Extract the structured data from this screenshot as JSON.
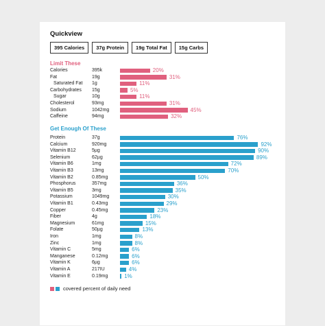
{
  "colors": {
    "limit": "#e0607e",
    "enough": "#2aa0cc",
    "background": "#ededed",
    "card": "#ffffff"
  },
  "quickview": {
    "title": "Quickview",
    "chips": [
      "395 Calories",
      "37g Protein",
      "19g Total Fat",
      "15g Carbs"
    ]
  },
  "limit": {
    "title": "Limit These",
    "items": [
      {
        "name": "Calories",
        "amount": "395k",
        "pct": 20,
        "label": "20%",
        "indent": false
      },
      {
        "name": "Fat",
        "amount": "19g",
        "pct": 31,
        "label": "31%",
        "indent": false
      },
      {
        "name": "Saturated Fat",
        "amount": "1g",
        "pct": 11,
        "label": "11%",
        "indent": true
      },
      {
        "name": "Carbohydrates",
        "amount": "15g",
        "pct": 5,
        "label": "5%",
        "indent": false
      },
      {
        "name": "Sugar",
        "amount": "10g",
        "pct": 11,
        "label": "11%",
        "indent": true
      },
      {
        "name": "Cholesterol",
        "amount": "93mg",
        "pct": 31,
        "label": "31%",
        "indent": false
      },
      {
        "name": "Sodium",
        "amount": "1042mg",
        "pct": 45,
        "label": "45%",
        "indent": false
      },
      {
        "name": "Caffeine",
        "amount": "94mg",
        "pct": 32,
        "label": "32%",
        "indent": false
      }
    ]
  },
  "enough": {
    "title": "Get Enough Of These",
    "items": [
      {
        "name": "Protein",
        "amount": "37g",
        "pct": 76,
        "label": "76%"
      },
      {
        "name": "Calcium",
        "amount": "920mg",
        "pct": 92,
        "label": "92%"
      },
      {
        "name": "Vitamin B12",
        "amount": "5µg",
        "pct": 90,
        "label": "90%"
      },
      {
        "name": "Selenium",
        "amount": "62µg",
        "pct": 89,
        "label": "89%"
      },
      {
        "name": "Vitamin B6",
        "amount": "1mg",
        "pct": 72,
        "label": "72%"
      },
      {
        "name": "Vitamin B3",
        "amount": "13mg",
        "pct": 70,
        "label": "70%"
      },
      {
        "name": "Vitamin B2",
        "amount": "0.85mg",
        "pct": 50,
        "label": "50%"
      },
      {
        "name": "Phosphorus",
        "amount": "357mg",
        "pct": 36,
        "label": "36%"
      },
      {
        "name": "Vitamin B5",
        "amount": "3mg",
        "pct": 35,
        "label": "35%"
      },
      {
        "name": "Potassium",
        "amount": "1049mg",
        "pct": 30,
        "label": "30%"
      },
      {
        "name": "Vitamin B1",
        "amount": "0.43mg",
        "pct": 29,
        "label": "29%"
      },
      {
        "name": "Copper",
        "amount": "0.45mg",
        "pct": 23,
        "label": "23%"
      },
      {
        "name": "Fiber",
        "amount": "4g",
        "pct": 18,
        "label": "18%"
      },
      {
        "name": "Magnesium",
        "amount": "61mg",
        "pct": 15,
        "label": "15%"
      },
      {
        "name": "Folate",
        "amount": "50µg",
        "pct": 13,
        "label": "13%"
      },
      {
        "name": "Iron",
        "amount": "1mg",
        "pct": 8,
        "label": "8%"
      },
      {
        "name": "Zinc",
        "amount": "1mg",
        "pct": 8,
        "label": "8%"
      },
      {
        "name": "Vitamin C",
        "amount": "5mg",
        "pct": 6,
        "label": "6%"
      },
      {
        "name": "Manganese",
        "amount": "0.12mg",
        "pct": 6,
        "label": "6%"
      },
      {
        "name": "Vitamin K",
        "amount": "6µg",
        "pct": 6,
        "label": "6%"
      },
      {
        "name": "Vitamin A",
        "amount": "217IU",
        "pct": 4,
        "label": "4%"
      },
      {
        "name": "Vitamin E",
        "amount": "0.19mg",
        "pct": 1,
        "label": "1%"
      }
    ]
  },
  "legend": {
    "text": "covered percent of daily need"
  }
}
